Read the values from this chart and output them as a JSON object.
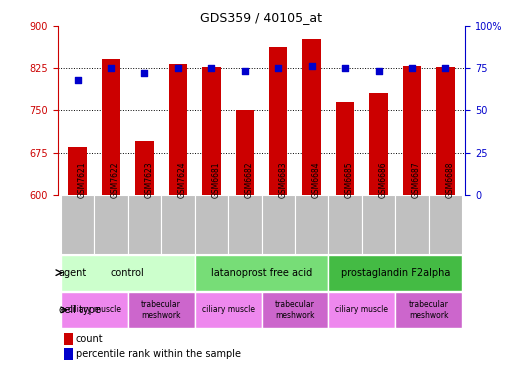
{
  "title": "GDS359 / 40105_at",
  "samples": [
    "GSM7621",
    "GSM7622",
    "GSM7623",
    "GSM7624",
    "GSM6681",
    "GSM6682",
    "GSM6683",
    "GSM6684",
    "GSM6685",
    "GSM6686",
    "GSM6687",
    "GSM6688"
  ],
  "counts": [
    685,
    840,
    695,
    832,
    827,
    750,
    862,
    876,
    765,
    780,
    828,
    827
  ],
  "percentiles": [
    68,
    75,
    72,
    75,
    75,
    73,
    75,
    76,
    75,
    73,
    75,
    75
  ],
  "ylim_left": [
    600,
    900
  ],
  "ylim_right": [
    0,
    100
  ],
  "yticks_left": [
    600,
    675,
    750,
    825,
    900
  ],
  "yticks_right": [
    0,
    25,
    50,
    75,
    100
  ],
  "ytick_labels_right": [
    "0",
    "25",
    "50",
    "75",
    "100%"
  ],
  "grid_values": [
    675,
    750,
    825
  ],
  "bar_color": "#cc0000",
  "dot_color": "#0000cc",
  "agent_groups": [
    {
      "label": "control",
      "start": 0,
      "end": 4,
      "color": "#ccffcc"
    },
    {
      "label": "latanoprost free acid",
      "start": 4,
      "end": 8,
      "color": "#77dd77"
    },
    {
      "label": "prostaglandin F2alpha",
      "start": 8,
      "end": 12,
      "color": "#44bb44"
    }
  ],
  "cell_type_groups": [
    {
      "label": "ciliary muscle",
      "start": 0,
      "end": 2,
      "color": "#ee88ee"
    },
    {
      "label": "trabecular\nmeshwork",
      "start": 2,
      "end": 4,
      "color": "#cc66cc"
    },
    {
      "label": "ciliary muscle",
      "start": 4,
      "end": 6,
      "color": "#ee88ee"
    },
    {
      "label": "trabecular\nmeshwork",
      "start": 6,
      "end": 8,
      "color": "#cc66cc"
    },
    {
      "label": "ciliary muscle",
      "start": 8,
      "end": 10,
      "color": "#ee88ee"
    },
    {
      "label": "trabecular\nmeshwork",
      "start": 10,
      "end": 12,
      "color": "#cc66cc"
    }
  ],
  "tick_label_color_left": "#cc0000",
  "tick_label_color_right": "#0000cc",
  "sample_bg_color": "#c0c0c0",
  "legend_count_color": "#cc0000",
  "legend_pct_color": "#0000cc",
  "bg_color": "#ffffff"
}
